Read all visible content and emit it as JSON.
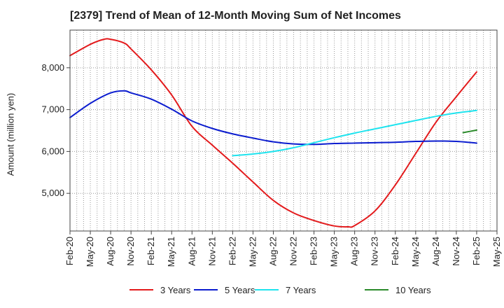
{
  "chart_data": {
    "type": "line",
    "title": "[2379]  Trend of Mean of 12-Month Moving Sum of Net Incomes",
    "xlabel": "",
    "ylabel": "Amount (million yen)",
    "ylim": [
      4100,
      8900
    ],
    "yticks": [
      5000,
      6000,
      7000,
      8000
    ],
    "ytick_labels": [
      "5,000",
      "6,000",
      "7,000",
      "8,000"
    ],
    "xticks": [
      "Feb-20",
      "May-20",
      "Aug-20",
      "Nov-20",
      "Feb-21",
      "May-21",
      "Aug-21",
      "Nov-21",
      "Feb-22",
      "May-22",
      "Aug-22",
      "Nov-22",
      "Feb-23",
      "May-23",
      "Aug-23",
      "Nov-23",
      "Feb-24",
      "May-24",
      "Aug-24",
      "Nov-24",
      "Feb-25",
      "May-25"
    ],
    "grid": true,
    "legend_position": "bottom",
    "series": [
      {
        "name": "3 Years",
        "color": "#e31a1c",
        "points": [
          [
            "Feb-20",
            8290
          ],
          [
            "May-20",
            8560
          ],
          [
            "Jul-20",
            8680
          ],
          [
            "Aug-20",
            8680
          ],
          [
            "Oct-20",
            8590
          ],
          [
            "Nov-20",
            8450
          ],
          [
            "Feb-21",
            7950
          ],
          [
            "May-21",
            7350
          ],
          [
            "Aug-21",
            6600
          ],
          [
            "Nov-21",
            6150
          ],
          [
            "Feb-22",
            5720
          ],
          [
            "May-22",
            5270
          ],
          [
            "Aug-22",
            4830
          ],
          [
            "Nov-22",
            4530
          ],
          [
            "Feb-23",
            4350
          ],
          [
            "May-23",
            4220
          ],
          [
            "Jul-23",
            4200
          ],
          [
            "Aug-23",
            4230
          ],
          [
            "Nov-23",
            4580
          ],
          [
            "Feb-24",
            5200
          ],
          [
            "May-24",
            5950
          ],
          [
            "Aug-24",
            6700
          ],
          [
            "Nov-24",
            7310
          ],
          [
            "Feb-25",
            7900
          ]
        ]
      },
      {
        "name": "5 Years",
        "color": "#0b1ccf",
        "points": [
          [
            "Feb-20",
            6810
          ],
          [
            "May-20",
            7150
          ],
          [
            "Aug-20",
            7400
          ],
          [
            "Oct-20",
            7450
          ],
          [
            "Nov-20",
            7400
          ],
          [
            "Feb-21",
            7250
          ],
          [
            "May-21",
            7010
          ],
          [
            "Aug-21",
            6730
          ],
          [
            "Nov-21",
            6550
          ],
          [
            "Feb-22",
            6420
          ],
          [
            "May-22",
            6320
          ],
          [
            "Aug-22",
            6230
          ],
          [
            "Nov-22",
            6180
          ],
          [
            "Feb-23",
            6170
          ],
          [
            "May-23",
            6190
          ],
          [
            "Aug-23",
            6200
          ],
          [
            "Nov-23",
            6210
          ],
          [
            "Feb-24",
            6220
          ],
          [
            "May-24",
            6240
          ],
          [
            "Aug-24",
            6250
          ],
          [
            "Nov-24",
            6240
          ],
          [
            "Feb-25",
            6200
          ]
        ]
      },
      {
        "name": "7 Years",
        "color": "#1ee3ee",
        "points": [
          [
            "Feb-22",
            5900
          ],
          [
            "May-22",
            5940
          ],
          [
            "Aug-22",
            6000
          ],
          [
            "Nov-22",
            6090
          ],
          [
            "Feb-23",
            6210
          ],
          [
            "May-23",
            6330
          ],
          [
            "Aug-23",
            6440
          ],
          [
            "Nov-23",
            6540
          ],
          [
            "Feb-24",
            6640
          ],
          [
            "May-24",
            6740
          ],
          [
            "Aug-24",
            6840
          ],
          [
            "Nov-24",
            6920
          ],
          [
            "Feb-25",
            6980
          ]
        ]
      },
      {
        "name": "10 Years",
        "color": "#2a8a2a",
        "points": [
          [
            "Dec-24",
            6450
          ],
          [
            "Feb-25",
            6510
          ]
        ]
      }
    ]
  }
}
